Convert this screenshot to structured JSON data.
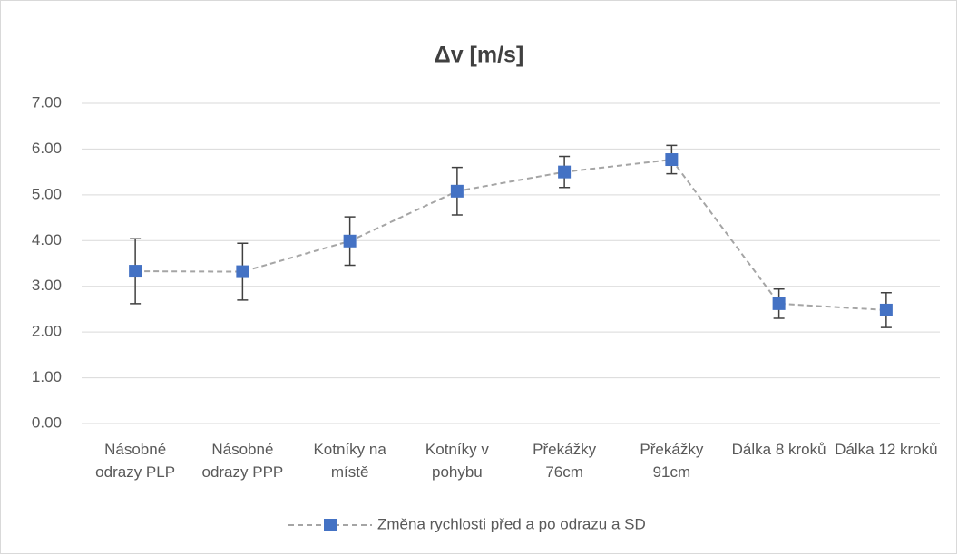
{
  "chart_data": {
    "type": "line",
    "title": "Δv [m/s]",
    "categories": [
      "Násobné odrazy PLP",
      "Násobné odrazy PPP",
      "Kotníky na místě",
      "Kotníky v pohybu",
      "Překážky 76cm",
      "Překážky 91cm",
      "Dálka 8 kroků",
      "Dálka 12 kroků"
    ],
    "series": [
      {
        "name": "Změna rychlosti před a po odrazu a SD",
        "color": "#4472c4",
        "line_color": "#a5a5a5",
        "values": [
          3.33,
          3.32,
          3.99,
          5.08,
          5.5,
          5.77,
          2.62,
          2.48
        ],
        "errors": [
          0.71,
          0.62,
          0.53,
          0.52,
          0.34,
          0.31,
          0.32,
          0.38
        ]
      }
    ],
    "ylim": [
      0,
      7
    ],
    "yticks": [
      {
        "value": 0,
        "label": "0.00"
      },
      {
        "value": 1,
        "label": "1.00"
      },
      {
        "value": 2,
        "label": "2.00"
      },
      {
        "value": 3,
        "label": "3.00"
      },
      {
        "value": 4,
        "label": "4.00"
      },
      {
        "value": 5,
        "label": "5.00"
      },
      {
        "value": 6,
        "label": "6.00"
      },
      {
        "value": 7,
        "label": "7.00"
      }
    ],
    "grid": true,
    "legend": "bottom"
  }
}
